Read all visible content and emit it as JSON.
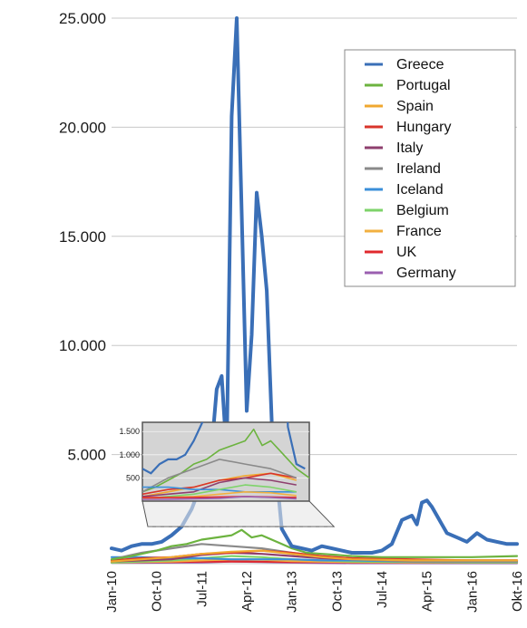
{
  "chart_data": {
    "type": "line",
    "title": "",
    "xlabel": "",
    "ylabel": "",
    "ylim": [
      0,
      25000
    ],
    "yticks": [
      "5.000",
      "10.000",
      "15.000",
      "20.000",
      "25.000"
    ],
    "ytick_values": [
      5000,
      10000,
      15000,
      20000,
      25000
    ],
    "xticks": [
      "Jan-10",
      "Oct-10",
      "Jul-11",
      "Apr-12",
      "Jan-13",
      "Oct-13",
      "Jul-14",
      "Apr-15",
      "Jan-16",
      "Okt-16"
    ],
    "xtick_dates": [
      "2010-01",
      "2010-10",
      "2011-07",
      "2012-04",
      "2013-01",
      "2013-10",
      "2014-07",
      "2015-04",
      "2016-01",
      "2016-10"
    ],
    "grid": true,
    "legend_position": "top-right",
    "series": [
      {
        "name": "Greece",
        "color": "#3a6fb7",
        "x": [
          "2010-01",
          "2010-03",
          "2010-05",
          "2010-07",
          "2010-09",
          "2010-11",
          "2011-01",
          "2011-03",
          "2011-05",
          "2011-07",
          "2011-09",
          "2011-10",
          "2011-11",
          "2011-12",
          "2012-01",
          "2012-02",
          "2012-03",
          "2012-04",
          "2012-05",
          "2012-06",
          "2012-07",
          "2012-08",
          "2012-09",
          "2012-10",
          "2012-11",
          "2012-12",
          "2013-01",
          "2013-03",
          "2013-05",
          "2013-07",
          "2013-09",
          "2013-11",
          "2014-01",
          "2014-03",
          "2014-05",
          "2014-07",
          "2014-09",
          "2014-11",
          "2015-01",
          "2015-02",
          "2015-03",
          "2015-04",
          "2015-05",
          "2015-06",
          "2015-07",
          "2015-08",
          "2015-10",
          "2015-12",
          "2016-02",
          "2016-04",
          "2016-06",
          "2016-08",
          "2016-10"
        ],
        "values": [
          700,
          600,
          800,
          900,
          900,
          1000,
          1300,
          1700,
          2500,
          3700,
          5300,
          8000,
          8600,
          5000,
          20500,
          25000,
          16000,
          7000,
          10500,
          17000,
          15000,
          12500,
          6500,
          4000,
          1600,
          1200,
          800,
          700,
          600,
          800,
          700,
          600,
          500,
          500,
          500,
          600,
          900,
          2000,
          2200,
          1800,
          2800,
          2900,
          2600,
          2200,
          1800,
          1400,
          1200,
          1000,
          1400,
          1100,
          1000,
          900,
          900
        ]
      },
      {
        "name": "Portugal",
        "color": "#6cb33f",
        "x": [
          "2010-01",
          "2010-04",
          "2010-07",
          "2010-10",
          "2011-01",
          "2011-04",
          "2011-07",
          "2011-10",
          "2012-01",
          "2012-03",
          "2012-05",
          "2012-07",
          "2012-09",
          "2012-11",
          "2013-01",
          "2013-04",
          "2013-07",
          "2013-10",
          "2014-01",
          "2014-07",
          "2015-01",
          "2015-07",
          "2016-01",
          "2016-10"
        ],
        "values": [
          200,
          300,
          450,
          600,
          800,
          900,
          1100,
          1200,
          1300,
          1550,
          1200,
          1300,
          1100,
          900,
          700,
          500,
          450,
          400,
          350,
          300,
          300,
          300,
          300,
          350
        ]
      },
      {
        "name": "Spain",
        "color": "#f0a830",
        "x": [
          "2010-01",
          "2010-07",
          "2011-01",
          "2011-07",
          "2012-01",
          "2012-07",
          "2013-01",
          "2013-07",
          "2014-01",
          "2015-01",
          "2016-01",
          "2016-10"
        ],
        "values": [
          100,
          200,
          300,
          450,
          550,
          600,
          450,
          300,
          200,
          150,
          150,
          150
        ]
      },
      {
        "name": "Hungary",
        "color": "#d9352b",
        "x": [
          "2010-01",
          "2010-07",
          "2011-01",
          "2011-07",
          "2012-01",
          "2012-07",
          "2013-01",
          "2013-07",
          "2014-01",
          "2015-01",
          "2016-01",
          "2016-10"
        ],
        "values": [
          150,
          250,
          300,
          450,
          500,
          600,
          500,
          350,
          250,
          200,
          150,
          150
        ]
      },
      {
        "name": "Italy",
        "color": "#8e3f6e",
        "x": [
          "2010-01",
          "2010-07",
          "2011-01",
          "2011-07",
          "2012-01",
          "2012-07",
          "2013-01",
          "2013-07",
          "2014-01",
          "2015-01",
          "2016-01",
          "2016-10"
        ],
        "values": [
          100,
          150,
          200,
          400,
          500,
          450,
          350,
          250,
          200,
          150,
          150,
          150
        ]
      },
      {
        "name": "Ireland",
        "color": "#8a8a8a",
        "x": [
          "2010-01",
          "2010-07",
          "2011-01",
          "2011-07",
          "2012-01",
          "2012-07",
          "2013-01",
          "2013-07",
          "2014-01",
          "2015-01",
          "2016-01",
          "2016-10"
        ],
        "values": [
          200,
          500,
          700,
          900,
          800,
          700,
          500,
          300,
          200,
          100,
          100,
          100
        ]
      },
      {
        "name": "Iceland",
        "color": "#3b8fd9",
        "x": [
          "2010-01",
          "2010-07",
          "2011-01",
          "2011-07",
          "2012-01",
          "2012-07",
          "2013-01",
          "2013-07",
          "2014-01",
          "2015-01",
          "2016-01",
          "2016-10"
        ],
        "values": [
          300,
          300,
          250,
          250,
          200,
          200,
          200,
          150,
          150,
          100,
          100,
          100
        ]
      },
      {
        "name": "Belgium",
        "color": "#7ed36a",
        "x": [
          "2010-01",
          "2010-07",
          "2011-01",
          "2011-07",
          "2012-01",
          "2012-07",
          "2013-01",
          "2013-07",
          "2014-01",
          "2015-01",
          "2016-01",
          "2016-10"
        ],
        "values": [
          50,
          100,
          150,
          250,
          350,
          300,
          200,
          150,
          100,
          80,
          60,
          60
        ]
      },
      {
        "name": "France",
        "color": "#f2b040",
        "x": [
          "2010-01",
          "2010-07",
          "2011-01",
          "2011-07",
          "2012-01",
          "2012-07",
          "2013-01",
          "2013-07",
          "2014-01",
          "2015-01",
          "2016-01",
          "2016-10"
        ],
        "values": [
          50,
          80,
          100,
          150,
          200,
          180,
          120,
          90,
          70,
          60,
          60,
          60
        ]
      },
      {
        "name": "UK",
        "color": "#e0282d",
        "x": [
          "2010-01",
          "2010-07",
          "2011-01",
          "2011-07",
          "2012-01",
          "2012-07",
          "2013-01",
          "2013-07",
          "2014-01",
          "2015-01",
          "2016-01",
          "2016-10"
        ],
        "values": [
          80,
          80,
          80,
          90,
          100,
          90,
          80,
          70,
          60,
          60,
          60,
          60
        ]
      },
      {
        "name": "Germany",
        "color": "#9b5fb0",
        "x": [
          "2010-01",
          "2010-07",
          "2011-01",
          "2011-07",
          "2012-01",
          "2012-07",
          "2013-01",
          "2013-07",
          "2014-01",
          "2015-01",
          "2016-01",
          "2016-10"
        ],
        "values": [
          40,
          40,
          50,
          60,
          100,
          80,
          50,
          30,
          20,
          20,
          20,
          20
        ]
      }
    ],
    "inset": {
      "yticks": [
        "500",
        "1.000",
        "1.500"
      ],
      "ytick_values": [
        500,
        1000,
        1500
      ],
      "ylim": [
        0,
        1700
      ],
      "x_range": [
        "2010-01",
        "2013-04"
      ],
      "background": "#d4d4d4"
    }
  }
}
